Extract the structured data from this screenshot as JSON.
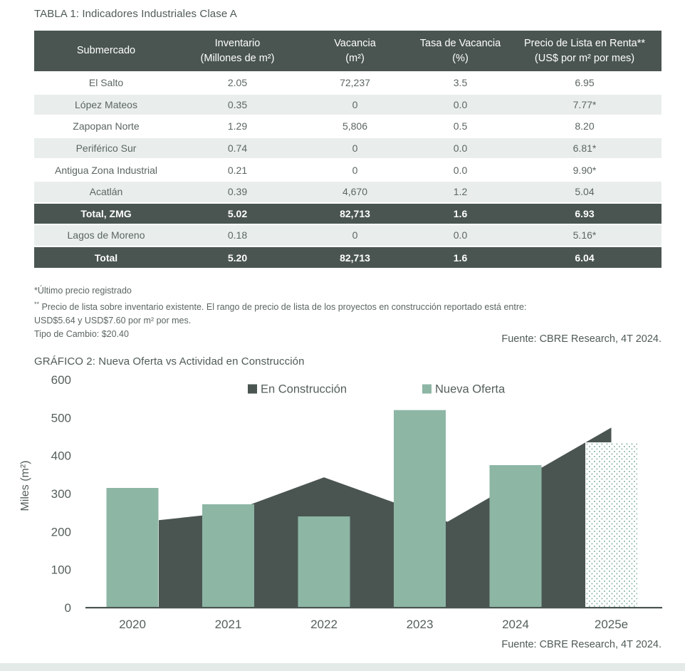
{
  "colors": {
    "dark": "#4a5551",
    "green": "#8db6a5",
    "light_row": "#e9eeec",
    "body_text": "#5b6662",
    "label_text": "#55605c",
    "bottom_strip": "#e3eae8"
  },
  "table_section": {
    "title": "TABLA 1: Indicadores Industriales Clase A",
    "columns": [
      {
        "line1": "Submercado",
        "line2": ""
      },
      {
        "line1": "Inventario",
        "line2": "(Millones de m²)"
      },
      {
        "line1": "Vacancia",
        "line2": "(m²)"
      },
      {
        "line1": "Tasa de Vacancia",
        "line2": "(%)"
      },
      {
        "line1": "Precio de Lista en Renta**",
        "line2": "(US$ por m² por mes)"
      }
    ],
    "rows": [
      {
        "style": "white",
        "cells": [
          "El Salto",
          "2.05",
          "72,237",
          "3.5",
          "6.95"
        ]
      },
      {
        "style": "light",
        "cells": [
          "López Mateos",
          "0.35",
          "0",
          "0.0",
          "7.77*"
        ]
      },
      {
        "style": "white",
        "cells": [
          "Zapopan Norte",
          "1.29",
          "5,806",
          "0.5",
          "8.20"
        ]
      },
      {
        "style": "light",
        "cells": [
          "Periférico Sur",
          "0.74",
          "0",
          "0.0",
          "6.81*"
        ]
      },
      {
        "style": "white",
        "cells": [
          "Antigua Zona Industrial",
          "0.21",
          "0",
          "0.0",
          "9.90*"
        ]
      },
      {
        "style": "light",
        "cells": [
          "Acatlán",
          "0.39",
          "4,670",
          "1.2",
          "5.04"
        ]
      },
      {
        "style": "dark",
        "cells": [
          "Total, ZMG",
          "5.02",
          "82,713",
          "1.6",
          "6.93"
        ]
      },
      {
        "style": "light",
        "cells": [
          "Lagos de Moreno",
          "0.18",
          "0",
          "0.0",
          "5.16*"
        ]
      },
      {
        "style": "dark",
        "cells": [
          "Total",
          "5.20",
          "82,713",
          "1.6",
          "6.04"
        ]
      }
    ]
  },
  "footnotes": {
    "line1": "*Último precio registrado",
    "line2_marker": "**",
    "line2": " Precio de lista sobre inventario existente. El rango de precio de lista de los proyectos en construcción reportado está entre:",
    "line3": "USD$5.64 y USD$7.60 por m² por mes.",
    "line4": "Tipo de Cambio: $20.40"
  },
  "source_table": "Fuente: CBRE Research, 4T 2024.",
  "chart_section": {
    "title": "GRÁFICO 2: Nueva Oferta vs Actividad en Construcción",
    "source": "Fuente: CBRE Research, 4T 2024."
  },
  "chart_data": {
    "type": "bar+area",
    "title": "GRÁFICO 2: Nueva Oferta vs Actividad en Construcción",
    "categories": [
      "2020",
      "2021",
      "2022",
      "2023",
      "2024",
      "2025e"
    ],
    "series": [
      {
        "name": "En Construcción",
        "type": "area",
        "color": "#4a5551",
        "values": [
          230,
          250,
          343,
          240,
          330,
          474
        ],
        "draw_vertices_year_value": [
          [
            0.275,
            230
          ],
          [
            1,
            250
          ],
          [
            2,
            343
          ],
          [
            3.29,
            226
          ],
          [
            5,
            474
          ]
        ]
      },
      {
        "name": "Nueva Oferta",
        "type": "bar",
        "color": "#8db6a5",
        "values": [
          315,
          272,
          240,
          520,
          375,
          435
        ],
        "last_bar_estimated_dotted": true
      }
    ],
    "ylabel": "Miles (m²)",
    "ylim": [
      0,
      600
    ],
    "ytick_step": 100,
    "yticks": [
      0,
      100,
      200,
      300,
      400,
      500,
      600
    ],
    "legend_position": "top",
    "grid": false
  }
}
